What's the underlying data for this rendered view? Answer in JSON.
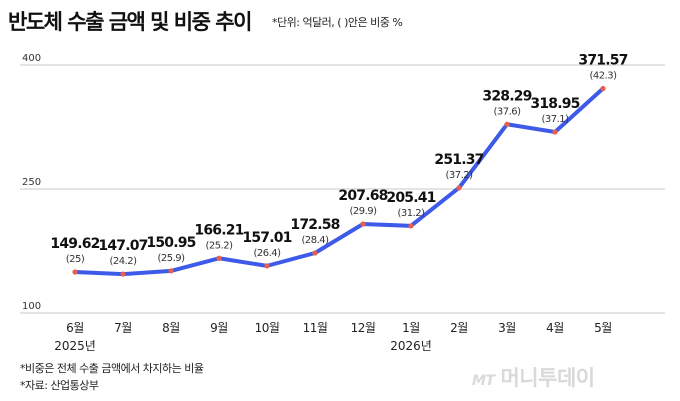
{
  "title": "반도체 수출 금액 및 비중 추이",
  "unit_note": "*단위: 억달러, ( )안은 비중 %",
  "notes": [
    "*비중은 전체 수출 금액에서 차지하는 비율",
    "*자료: 산업통상부"
  ],
  "watermark": {
    "mark": "MT",
    "name": "머니투데이"
  },
  "colors": {
    "line": "#3d5be8",
    "marker": "#e8604c",
    "grid": "#c8c8c8"
  },
  "chart_data": {
    "type": "line",
    "title": "반도체 수출 금액 및 비중 추이",
    "categories": [
      "6월",
      "7월",
      "8월",
      "9월",
      "10월",
      "11월",
      "12월",
      "1월",
      "2월",
      "3월",
      "4월",
      "5월"
    ],
    "year_labels": [
      {
        "label": "2025년",
        "category": "6월"
      },
      {
        "label": "2026년",
        "category": "1월"
      }
    ],
    "series": [
      {
        "values": [
          149.62,
          147.07,
          150.95,
          166.21,
          157.01,
          172.58,
          207.68,
          205.41,
          251.37,
          328.29,
          318.95,
          371.57
        ],
        "value_labels": [
          "149.62",
          "147.07",
          "150.95",
          "166.21",
          "157.01",
          "172.58",
          "207.68",
          "205.41",
          "251.37",
          "328.29",
          "318.95",
          "371.57"
        ]
      }
    ],
    "share_labels": [
      "(25)",
      "(24.2)",
      "(25.9)",
      "(25.2)",
      "(26.4)",
      "(28.4)",
      "(29.9)",
      "(31.2)",
      "(37.2)",
      "(37.6)",
      "(37.1)",
      "(42.3)"
    ],
    "yticks": [
      100,
      250,
      400
    ],
    "ylim": [
      100,
      400
    ],
    "grid": true,
    "legend": "none"
  }
}
